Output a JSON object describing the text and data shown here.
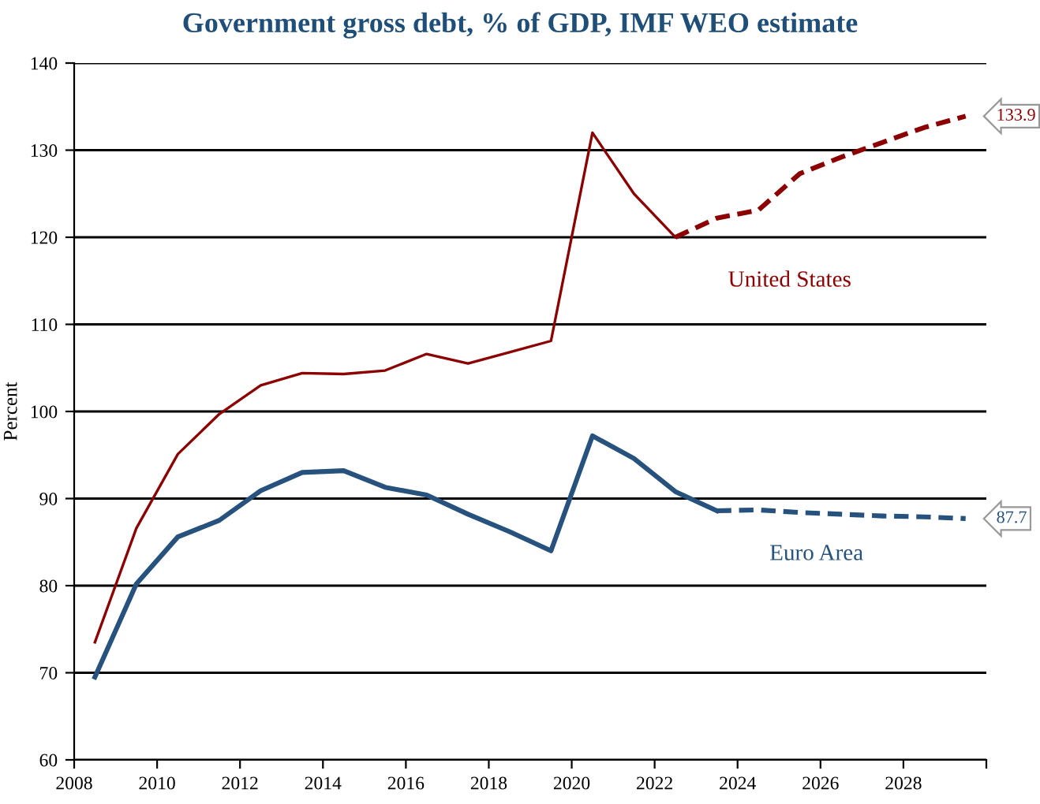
{
  "chart_data": {
    "type": "line",
    "title": "Government gross debt, % of GDP, IMF WEO estimate",
    "ylabel": "Percent",
    "xlim": [
      2008,
      2030
    ],
    "xticks": [
      2008,
      2010,
      2012,
      2014,
      2016,
      2018,
      2020,
      2022,
      2024,
      2026,
      2028,
      {
        "value": 2030,
        "label": null
      }
    ],
    "ylim": [
      60,
      140
    ],
    "yticks": [
      60,
      70,
      80,
      90,
      100,
      110,
      120,
      130,
      140
    ],
    "grid": "y",
    "legend": false,
    "series": [
      {
        "name": "United States",
        "color": "#8b0000",
        "line_style": "solid",
        "x": [
          2008.5,
          2009.5,
          2010.5,
          2011.5,
          2012.5,
          2013.5,
          2014.5,
          2015.5,
          2016.5,
          2017.5,
          2018.5,
          2019.5,
          2020.5,
          2021.5,
          2022.5
        ],
        "values": [
          73.5,
          86.6,
          95.1,
          99.7,
          103.0,
          104.4,
          104.3,
          104.7,
          106.6,
          105.5,
          106.8,
          108.1,
          132.0,
          125.0,
          120.0
        ]
      },
      {
        "color": "#8b0000",
        "line_style": "dashed",
        "x": [
          2022.5,
          2023.5,
          2024.5,
          2025.5,
          2026.5,
          2027.5,
          2028.5,
          2029.5
        ],
        "values": [
          120.0,
          122.2,
          123.1,
          127.3,
          129.2,
          130.9,
          132.6,
          133.9
        ],
        "value_labels": [
          null,
          null,
          null,
          null,
          null,
          null,
          null,
          "133.9"
        ]
      },
      {
        "name": "Euro Area",
        "color": "#27527e",
        "line_style": "solid",
        "x": [
          2008.5,
          2009.5,
          2010.5,
          2011.5,
          2012.5,
          2013.5,
          2014.5,
          2015.5,
          2016.5,
          2017.5,
          2018.5,
          2019.5,
          2020.5,
          2021.5,
          2022.5,
          2023.5
        ],
        "values": [
          69.5,
          80.2,
          85.6,
          87.5,
          90.9,
          93.0,
          93.2,
          91.3,
          90.4,
          88.2,
          86.2,
          84.0,
          97.2,
          94.6,
          90.8,
          88.6
        ]
      },
      {
        "color": "#27527e",
        "line_style": "dashed",
        "x": [
          2023.5,
          2024.5,
          2025.5,
          2026.5,
          2027.5,
          2028.5,
          2029.5
        ],
        "values": [
          88.6,
          88.7,
          88.4,
          88.2,
          88.0,
          87.9,
          87.7
        ],
        "value_labels": [
          null,
          null,
          null,
          null,
          null,
          null,
          "87.7"
        ]
      }
    ]
  }
}
